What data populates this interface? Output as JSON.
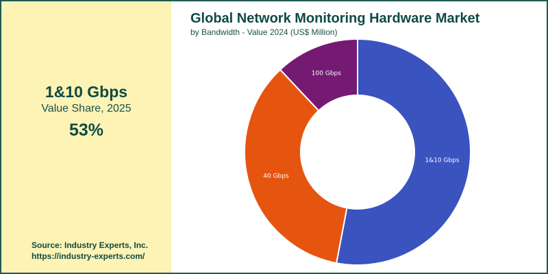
{
  "header": {
    "title": "Global Network Monitoring Hardware Market",
    "subtitle": "by Bandwidth - Value 2024 (US$ Million)"
  },
  "highlight": {
    "segment": "1&10 Gbps",
    "label": "Value Share, 2025",
    "value": "53%"
  },
  "source": {
    "line1": "Source: Industry Experts, Inc.",
    "line2": "https://industry-experts.com/"
  },
  "chart_data": {
    "type": "pie",
    "donut": true,
    "categories": [
      "1&10 Gbps",
      "40 Gbps",
      "100 Gbps"
    ],
    "values": [
      53,
      35,
      12
    ],
    "colors": [
      "#3a53bf",
      "#e6550f",
      "#741a73"
    ],
    "title": "Global Network Monitoring Hardware Market",
    "subtitle": "by Bandwidth - Value 2024 (US$ Million)",
    "legend": "none",
    "start_angle_deg": 0,
    "direction": "clockwise"
  }
}
